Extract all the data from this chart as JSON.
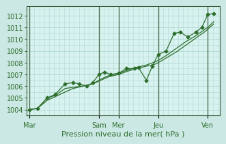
{
  "background_color": "#cce8e4",
  "plot_bg_color": "#d8f2ef",
  "grid_color": "#b0d8d4",
  "line_color": "#2d6e2d",
  "marker_color": "#2d6e2d",
  "vline_color": "#3a5a3a",
  "ylabel": "Pression niveau de la mer( hPa )",
  "ylim": [
    1003.5,
    1012.8
  ],
  "yticks": [
    1004,
    1005,
    1006,
    1007,
    1008,
    1009,
    1010,
    1011,
    1012
  ],
  "day_labels": [
    "Mar",
    "Sam",
    "Mer",
    "Jeu",
    "Ven"
  ],
  "day_positions": [
    0.0,
    3.5,
    4.5,
    6.5,
    9.0
  ],
  "smooth_x": [
    0.0,
    0.4,
    0.9,
    1.3,
    1.8,
    2.2,
    2.7,
    3.2,
    3.6,
    4.0,
    4.5,
    5.0,
    5.4,
    5.9,
    6.4,
    6.9,
    7.4,
    7.9,
    8.4,
    8.9,
    9.0,
    9.3
  ],
  "smooth_y": [
    1004.0,
    1004.1,
    1004.8,
    1005.1,
    1005.5,
    1005.8,
    1006.0,
    1006.2,
    1006.6,
    1006.9,
    1007.1,
    1007.4,
    1007.6,
    1007.8,
    1008.1,
    1008.6,
    1009.2,
    1009.8,
    1010.3,
    1010.9,
    1011.0,
    1011.5
  ],
  "volatile_x": [
    0.0,
    0.4,
    0.9,
    1.3,
    1.8,
    2.2,
    2.5,
    2.9,
    3.2,
    3.5,
    3.8,
    4.1,
    4.5,
    4.9,
    5.3,
    5.5,
    5.9,
    6.2,
    6.5,
    6.9,
    7.3,
    7.6,
    8.0,
    8.4,
    8.7,
    9.0,
    9.3
  ],
  "volatile_y": [
    1004.0,
    1004.1,
    1005.0,
    1005.3,
    1006.2,
    1006.3,
    1006.2,
    1006.0,
    1006.3,
    1007.0,
    1007.2,
    1007.0,
    1007.1,
    1007.5,
    1007.5,
    1007.6,
    1006.5,
    1007.7,
    1008.7,
    1009.0,
    1010.5,
    1010.6,
    1010.2,
    1010.6,
    1011.0,
    1012.1,
    1012.2
  ],
  "extra_x": [
    0.0,
    0.4,
    0.9,
    1.3,
    1.8,
    2.2,
    2.7,
    3.2,
    3.6,
    4.0,
    4.5,
    5.0,
    5.4,
    5.9,
    6.4,
    6.9,
    7.4,
    7.9,
    8.4,
    8.9,
    9.3
  ],
  "extra_y": [
    1004.0,
    1004.1,
    1005.0,
    1005.2,
    1005.8,
    1005.9,
    1006.0,
    1006.2,
    1006.5,
    1006.8,
    1007.0,
    1007.3,
    1007.5,
    1007.7,
    1007.9,
    1008.4,
    1008.9,
    1009.5,
    1010.1,
    1010.7,
    1011.3
  ],
  "vline_positions": [
    0.0,
    3.5,
    4.5,
    6.5,
    9.0
  ],
  "tick_fontsize": 7,
  "label_fontsize": 8
}
